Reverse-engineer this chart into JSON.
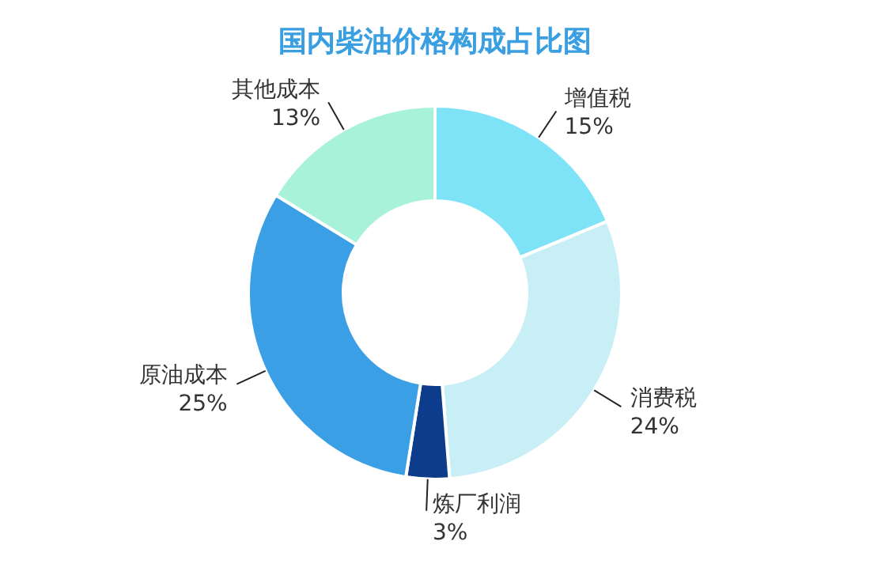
{
  "chart_data": {
    "type": "donut",
    "title": "国内柴油价格构成占比图",
    "categories": [
      "增值税",
      "消费税",
      "炼厂利润",
      "原油成本",
      "其他成本"
    ],
    "values": [
      15,
      24,
      3,
      25,
      13
    ],
    "value_labels": [
      "15%",
      "24%",
      "3%",
      "25%",
      "13%"
    ],
    "colors": [
      "#7fe3f7",
      "#c9eff6",
      "#0e3c8c",
      "#3b9fe6",
      "#a8f2d9"
    ]
  }
}
